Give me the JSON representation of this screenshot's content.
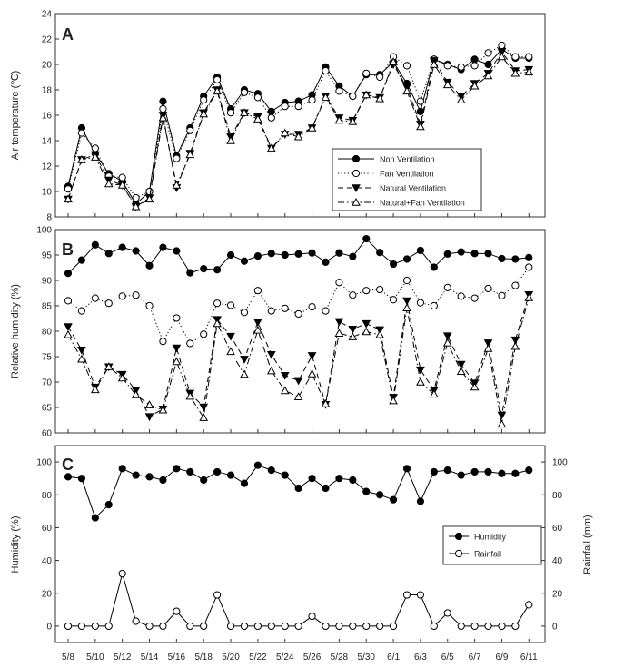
{
  "chart_data": [
    {
      "id": "A",
      "type": "line",
      "panel_letter": "A",
      "ylabel": "Air temperature (℃)",
      "ylim": [
        8,
        24
      ],
      "yticks": [
        8,
        10,
        12,
        14,
        16,
        18,
        20,
        22,
        24
      ],
      "legend_position": "lower-right",
      "series": [
        {
          "name": "Non Ventilation",
          "marker": "filled-circle",
          "dash": "solid",
          "values": [
            10.4,
            15.0,
            13.0,
            11.4,
            10.8,
            9.0,
            10.0,
            17.1,
            12.8,
            15.0,
            17.5,
            19.0,
            16.5,
            18.0,
            17.7,
            16.3,
            17.0,
            17.1,
            17.6,
            19.8,
            18.3,
            17.5,
            19.2,
            19.2,
            20.2,
            18.5,
            16.3,
            20.4,
            20.0,
            19.6,
            20.4,
            20.0,
            21.2,
            20.5,
            20.5
          ]
        },
        {
          "name": "Fan Ventilation",
          "marker": "open-circle",
          "dash": "dotted",
          "values": [
            10.2,
            14.6,
            13.4,
            11.2,
            11.1,
            9.5,
            10.0,
            16.5,
            12.6,
            14.8,
            17.2,
            18.8,
            16.2,
            17.8,
            17.4,
            15.8,
            16.7,
            16.7,
            17.2,
            19.5,
            17.9,
            17.5,
            19.3,
            19.0,
            20.6,
            19.9,
            17.1,
            20.4,
            19.9,
            19.8,
            19.9,
            20.9,
            21.5,
            20.6,
            20.6
          ]
        },
        {
          "name": "Natural Ventilation",
          "marker": "filled-triangle-down",
          "dash": "dashed",
          "values": [
            9.4,
            12.5,
            12.9,
            10.9,
            10.5,
            8.8,
            9.5,
            16.0,
            10.3,
            13.0,
            16.2,
            18.0,
            14.3,
            16.2,
            15.9,
            13.4,
            14.5,
            14.5,
            15.0,
            17.5,
            15.8,
            15.6,
            17.6,
            17.4,
            20.0,
            18.2,
            15.3,
            20.3,
            18.6,
            17.5,
            18.5,
            19.3,
            21.0,
            19.5,
            19.6
          ]
        },
        {
          "name": "Natural+Fan Ventilation",
          "marker": "open-triangle-up",
          "dash": "dashdot",
          "values": [
            9.4,
            12.5,
            12.7,
            10.6,
            10.5,
            8.8,
            9.4,
            15.8,
            10.5,
            12.9,
            16.1,
            17.9,
            14.0,
            16.2,
            15.7,
            13.4,
            14.6,
            14.3,
            15.0,
            17.4,
            15.6,
            15.5,
            17.6,
            17.3,
            20.2,
            17.9,
            15.1,
            20.0,
            18.4,
            17.2,
            18.3,
            19.1,
            20.6,
            19.3,
            19.4
          ]
        }
      ]
    },
    {
      "id": "B",
      "type": "line",
      "panel_letter": "B",
      "ylabel": "Relative humidity (%)",
      "ylim": [
        60,
        100
      ],
      "yticks": [
        60,
        65,
        70,
        75,
        80,
        85,
        90,
        95,
        100
      ],
      "series": [
        {
          "name": "Non Ventilation",
          "marker": "filled-circle",
          "dash": "solid",
          "values": [
            91.4,
            94.0,
            97.0,
            95.3,
            96.5,
            95.8,
            92.9,
            96.5,
            95.8,
            91.5,
            92.3,
            92.1,
            95.0,
            93.8,
            94.8,
            95.3,
            95.0,
            95.2,
            95.4,
            93.6,
            95.4,
            94.7,
            98.2,
            95.5,
            93.2,
            94.2,
            95.9,
            92.6,
            95.2,
            95.6,
            95.3,
            95.3,
            94.3,
            94.2,
            94.5
          ]
        },
        {
          "name": "Fan Ventilation",
          "marker": "open-circle",
          "dash": "dotted",
          "values": [
            86.0,
            84.0,
            86.5,
            85.5,
            86.9,
            87.1,
            85.0,
            78.0,
            82.6,
            77.6,
            79.4,
            85.5,
            85.1,
            83.7,
            88.0,
            84.0,
            84.5,
            83.4,
            84.8,
            84.0,
            89.6,
            87.1,
            88.0,
            88.2,
            86.2,
            90.0,
            85.6,
            85.0,
            88.6,
            86.9,
            86.5,
            88.4,
            87.0,
            89.0,
            92.6
          ]
        },
        {
          "name": "Natural Ventilation",
          "marker": "filled-triangle-down",
          "dash": "dashed",
          "values": [
            80.9,
            76.3,
            69.0,
            73.0,
            71.5,
            68.4,
            63.2,
            64.7,
            76.7,
            67.8,
            65.1,
            82.3,
            79.0,
            74.5,
            81.8,
            75.4,
            71.3,
            70.3,
            75.2,
            65.6,
            81.9,
            80.4,
            81.5,
            80.3,
            67.0,
            86.0,
            72.4,
            68.4,
            79.1,
            73.5,
            69.8,
            77.7,
            63.5,
            78.3,
            87.2
          ]
        },
        {
          "name": "Natural+Fan Ventilation",
          "marker": "open-triangle-up",
          "dash": "dashdot",
          "values": [
            79.3,
            74.5,
            68.5,
            73.0,
            70.8,
            67.5,
            65.5,
            64.5,
            74.0,
            67.2,
            63.0,
            81.5,
            76.0,
            71.5,
            80.2,
            72.2,
            68.3,
            67.1,
            71.6,
            65.7,
            79.6,
            78.9,
            79.9,
            79.3,
            66.3,
            84.6,
            70.0,
            67.6,
            77.7,
            72.1,
            69.0,
            76.6,
            61.7,
            77.0,
            86.6
          ]
        }
      ]
    },
    {
      "id": "C",
      "type": "line",
      "panel_letter": "C",
      "ylabel": "Humidity (%)",
      "y2label": "Rainfall (mm)",
      "ylim": [
        -10,
        110
      ],
      "yticks": [
        0,
        20,
        40,
        60,
        80,
        100
      ],
      "y2lim": [
        -10,
        110
      ],
      "y2ticks": [
        0,
        20,
        40,
        60,
        80,
        100
      ],
      "legend_position": "middle-right",
      "xlabels": [
        "5/8",
        "5/10",
        "5/12",
        "5/14",
        "5/16",
        "5/18",
        "5/20",
        "5/22",
        "5/24",
        "5/26",
        "5/28",
        "5/30",
        "6/1",
        "6/3",
        "6/5",
        "6/7",
        "6/9",
        "6/11"
      ],
      "series": [
        {
          "name": "Humidity",
          "marker": "filled-circle",
          "dash": "solid",
          "values": [
            91,
            90,
            66,
            74,
            96,
            92,
            91,
            89,
            96,
            94,
            89,
            94,
            92,
            87,
            98,
            95,
            92,
            84,
            90,
            84,
            90,
            89,
            82,
            80,
            77,
            96,
            76,
            94,
            95,
            92,
            94,
            94,
            93,
            93,
            95
          ]
        },
        {
          "name": "Rainfall",
          "marker": "open-circle",
          "dash": "solid",
          "values": [
            0,
            0,
            0,
            0,
            32,
            3,
            0,
            0,
            9,
            0,
            0,
            19,
            0,
            0,
            0,
            0,
            0,
            0,
            6,
            0,
            0,
            0,
            0,
            0,
            0,
            19,
            19,
            0,
            8,
            0,
            0,
            0,
            0,
            0,
            13
          ]
        }
      ]
    }
  ]
}
